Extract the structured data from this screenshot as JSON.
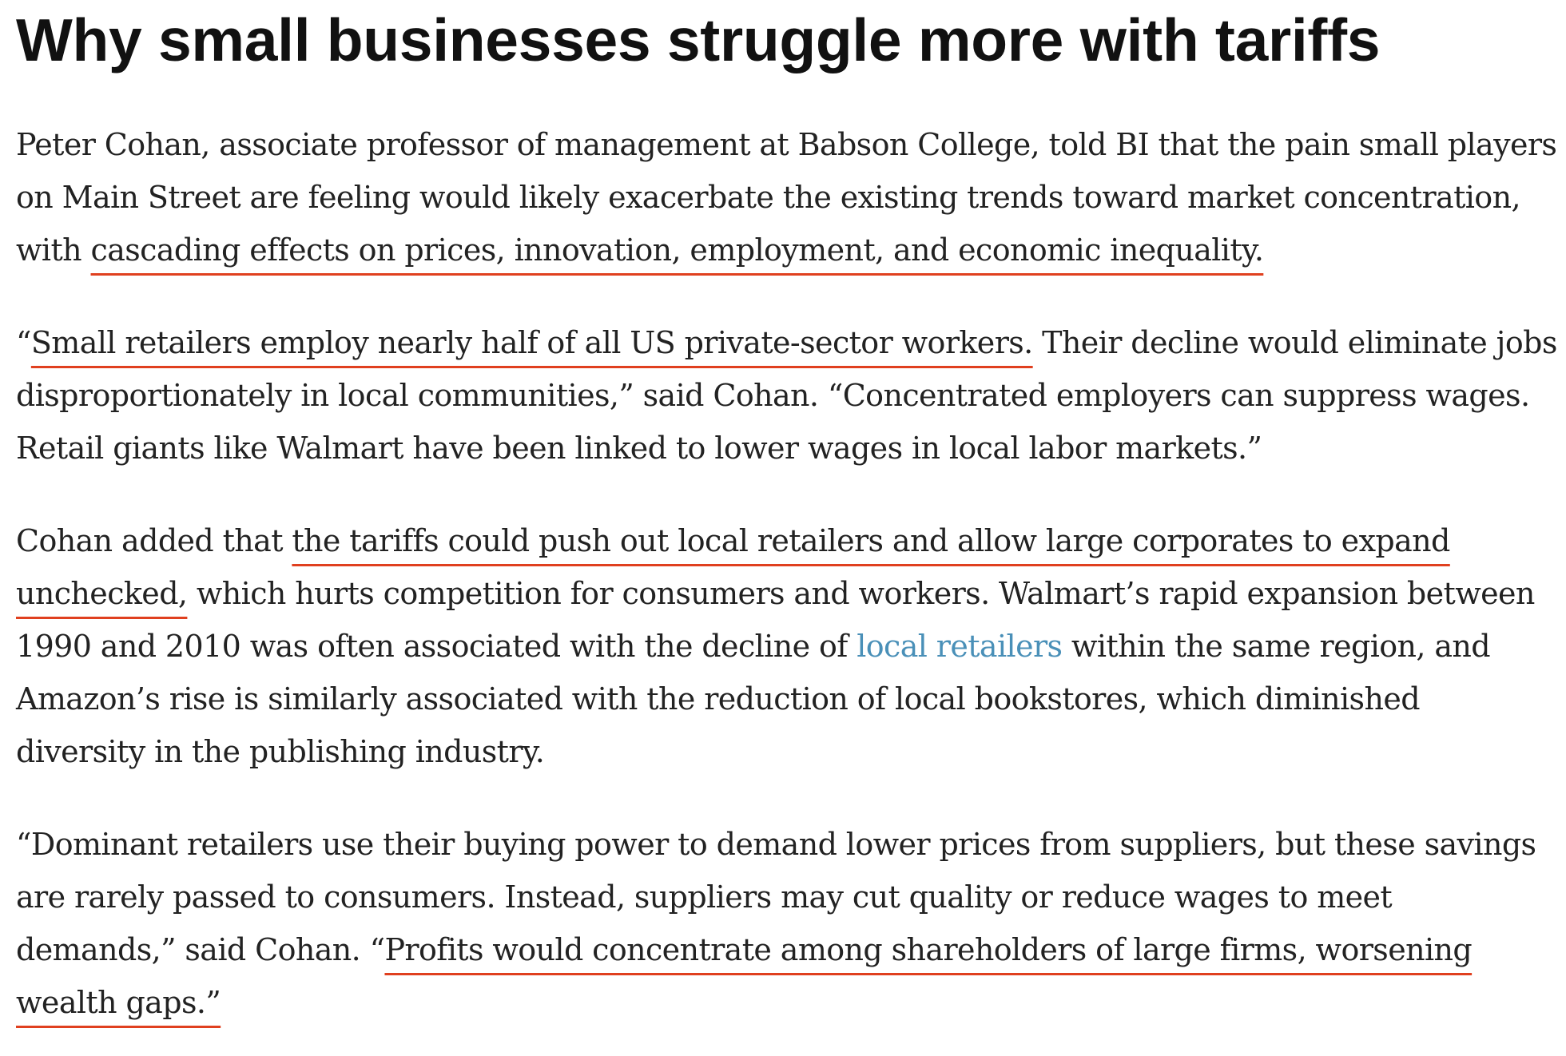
{
  "article": {
    "title": "Why small businesses struggle more with tariffs",
    "highlight_color": "#e0401f",
    "link_color": "#4a90b8",
    "paragraphs": [
      {
        "pre": "Peter Cohan, associate professor of management at Babson College, told BI that the pain small players on Main Street are feeling would likely exacerbate the existing trends toward market concentration, with ",
        "highlight": "cascading effects on prices, innovation, employment, and economic inequality."
      },
      {
        "pre": "“",
        "highlight": "Small retailers employ nearly half of all US private-sector workers.",
        "post": " Their decline would eliminate jobs disproportionately in local communities,” said Cohan. “Concentrated employers can suppress wages. Retail giants like Walmart have been linked to lower wages in local labor markets.”"
      },
      {
        "pre": "Cohan added that ",
        "highlight": "the tariffs could push out local retailers and allow large corporates to expand unchecked,",
        "mid": " which hurts competition for consumers and workers. Walmart’s rapid expansion between 1990 and 2010 was often associated with the decline of ",
        "link": "local retailers",
        "post": " within the same region, and Amazon’s rise is similarly associated with the reduction of local bookstores, which diminished diversity in the publishing industry."
      },
      {
        "pre": "“Dominant retailers use their buying power to demand lower prices from suppliers, but these savings are rarely passed to consumers. Instead, suppliers may cut quality or reduce wages to meet demands,” said Cohan. “",
        "highlight": "Profits would concentrate among shareholders of large firms, worsening wealth gaps.”"
      }
    ]
  }
}
